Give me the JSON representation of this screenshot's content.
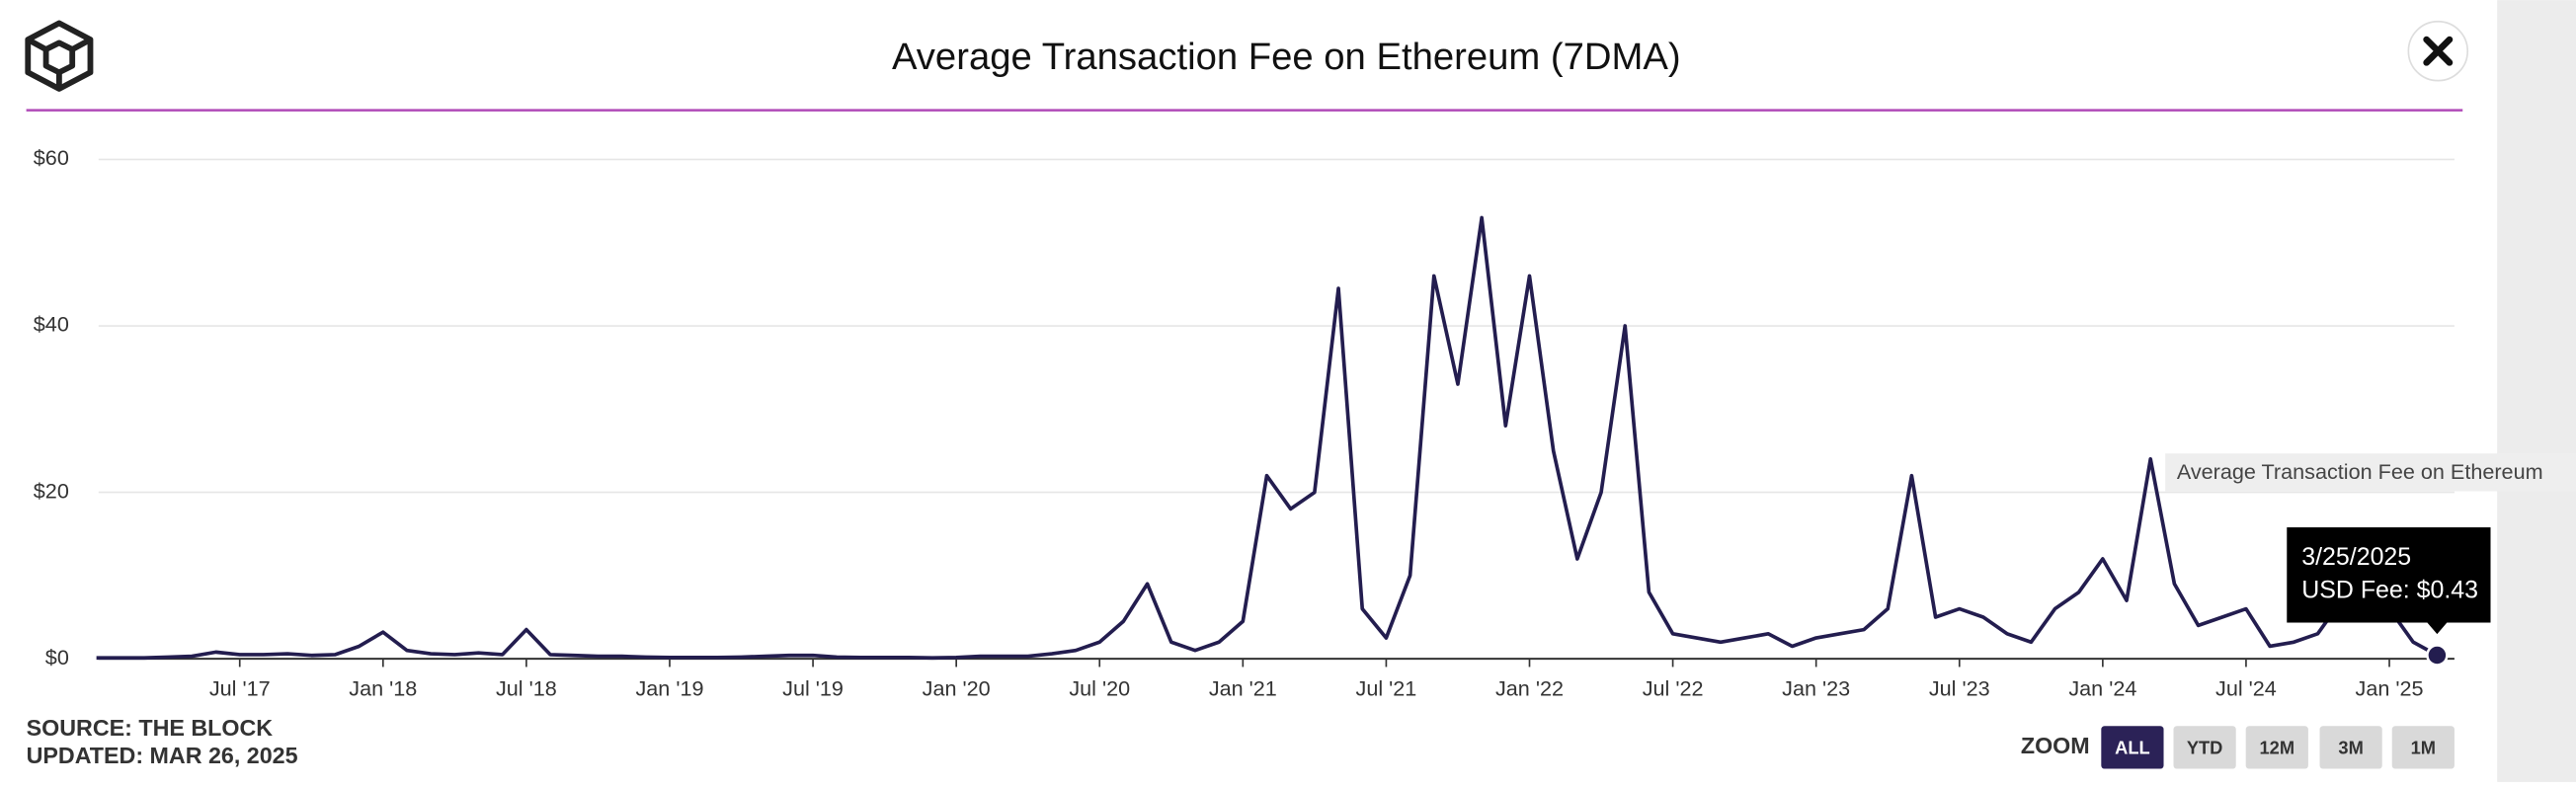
{
  "chart_data": {
    "type": "line",
    "title": "Average Transaction Fee on Ethereum (7DMA)",
    "x": [
      "2017-01",
      "2017-02",
      "2017-03",
      "2017-04",
      "2017-05",
      "2017-06",
      "2017-07",
      "2017-08",
      "2017-09",
      "2017-10",
      "2017-11",
      "2017-12",
      "2018-01",
      "2018-02",
      "2018-03",
      "2018-04",
      "2018-05",
      "2018-06",
      "2018-07",
      "2018-08",
      "2018-09",
      "2018-10",
      "2018-11",
      "2018-12",
      "2019-01",
      "2019-02",
      "2019-03",
      "2019-04",
      "2019-05",
      "2019-06",
      "2019-07",
      "2019-08",
      "2019-09",
      "2019-10",
      "2019-11",
      "2019-12",
      "2020-01",
      "2020-02",
      "2020-03",
      "2020-04",
      "2020-05",
      "2020-06",
      "2020-07",
      "2020-08",
      "2020-09",
      "2020-10",
      "2020-11",
      "2020-12",
      "2021-01",
      "2021-02",
      "2021-03",
      "2021-04",
      "2021-05",
      "2021-06",
      "2021-07",
      "2021-08",
      "2021-09",
      "2021-10",
      "2021-11",
      "2021-12",
      "2022-01",
      "2022-02",
      "2022-03",
      "2022-04",
      "2022-05",
      "2022-06",
      "2022-07",
      "2022-08",
      "2022-09",
      "2022-10",
      "2022-11",
      "2022-12",
      "2023-01",
      "2023-02",
      "2023-03",
      "2023-04",
      "2023-05",
      "2023-06",
      "2023-07",
      "2023-08",
      "2023-09",
      "2023-10",
      "2023-11",
      "2023-12",
      "2024-01",
      "2024-02",
      "2024-03",
      "2024-04",
      "2024-05",
      "2024-06",
      "2024-07",
      "2024-08",
      "2024-09",
      "2024-10",
      "2024-11",
      "2024-12",
      "2025-01",
      "2025-02",
      "2025-03"
    ],
    "series": [
      {
        "name": "Average Transaction Fee on Ethereum",
        "color": "#231d4f",
        "values": [
          0.1,
          0.1,
          0.1,
          0.2,
          0.3,
          0.8,
          0.5,
          0.5,
          0.6,
          0.4,
          0.5,
          1.5,
          3.2,
          1.0,
          0.6,
          0.5,
          0.7,
          0.5,
          3.5,
          0.5,
          0.4,
          0.3,
          0.3,
          0.2,
          0.15,
          0.15,
          0.15,
          0.2,
          0.3,
          0.4,
          0.4,
          0.2,
          0.15,
          0.15,
          0.15,
          0.1,
          0.15,
          0.3,
          0.3,
          0.3,
          0.6,
          1.0,
          2.0,
          4.5,
          9,
          2.0,
          1.0,
          2.0,
          4.5,
          22,
          18,
          20,
          44.5,
          6,
          2.5,
          10,
          46,
          33,
          53,
          28,
          46,
          25,
          12,
          20,
          40,
          8,
          3,
          2.5,
          2,
          2.5,
          3,
          1.5,
          2.5,
          3,
          3.5,
          6,
          22,
          5,
          6,
          5,
          3,
          2,
          6,
          8,
          12,
          7,
          24,
          9,
          4,
          5,
          6,
          1.5,
          2,
          3,
          7,
          6,
          6,
          2,
          0.43
        ]
      }
    ],
    "xlim": [
      "2017-01",
      "2025-04"
    ],
    "xticks": [
      {
        "value": "2017-07",
        "label": "Jul '17"
      },
      {
        "value": "2018-01",
        "label": "Jan '18"
      },
      {
        "value": "2018-07",
        "label": "Jul '18"
      },
      {
        "value": "2019-01",
        "label": "Jan '19"
      },
      {
        "value": "2019-07",
        "label": "Jul '19"
      },
      {
        "value": "2020-01",
        "label": "Jan '20"
      },
      {
        "value": "2020-07",
        "label": "Jul '20"
      },
      {
        "value": "2021-01",
        "label": "Jan '21"
      },
      {
        "value": "2021-07",
        "label": "Jul '21"
      },
      {
        "value": "2022-01",
        "label": "Jan '22"
      },
      {
        "value": "2022-07",
        "label": "Jul '22"
      },
      {
        "value": "2023-01",
        "label": "Jan '23"
      },
      {
        "value": "2023-07",
        "label": "Jul '23"
      },
      {
        "value": "2024-01",
        "label": "Jan '24"
      },
      {
        "value": "2024-07",
        "label": "Jul '24"
      },
      {
        "value": "2025-01",
        "label": "Jan '25"
      }
    ],
    "ylim": [
      0,
      60
    ],
    "yticks": [
      {
        "value": 0,
        "label": "$0"
      },
      {
        "value": 20,
        "label": "$20"
      },
      {
        "value": 40,
        "label": "$40"
      },
      {
        "value": 60,
        "label": "$60"
      }
    ],
    "grid": true,
    "tooltip": {
      "date": "3/25/2025",
      "text": "USD Fee: $0.43"
    }
  },
  "footer": {
    "source": "SOURCE: THE BLOCK",
    "updated": "UPDATED: MAR 26, 2025"
  },
  "zoom": {
    "label": "ZOOM",
    "buttons": [
      "ALL",
      "YTD",
      "12M",
      "3M",
      "1M"
    ],
    "active": 0
  }
}
